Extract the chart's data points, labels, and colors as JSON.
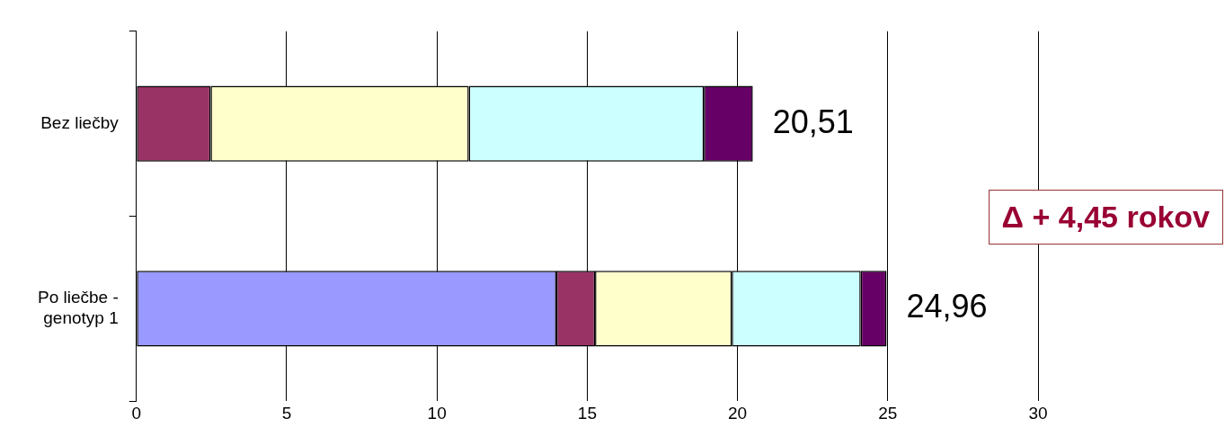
{
  "chart_data": {
    "type": "bar",
    "orientation": "horizontal",
    "stacked": true,
    "categories": [
      "Bez liečby",
      "Po liečbe - genotyp 1"
    ],
    "series": [
      {
        "color": "#9999ff",
        "values": [
          0,
          13.97
        ]
      },
      {
        "color": "#993366",
        "values": [
          2.47,
          1.29
        ]
      },
      {
        "color": "#ffffcc",
        "values": [
          8.59,
          4.55
        ]
      },
      {
        "color": "#ccffff",
        "values": [
          7.82,
          4.29
        ]
      },
      {
        "color": "#660066",
        "values": [
          1.63,
          0.86
        ]
      }
    ],
    "totals": [
      "20,51",
      "24,96"
    ],
    "xlim": [
      0,
      30
    ],
    "xticks": [
      0,
      5,
      10,
      15,
      20,
      25,
      30
    ],
    "grid": "x",
    "legend": false,
    "annotations": [
      "Δ + 4,45 rokov"
    ]
  }
}
